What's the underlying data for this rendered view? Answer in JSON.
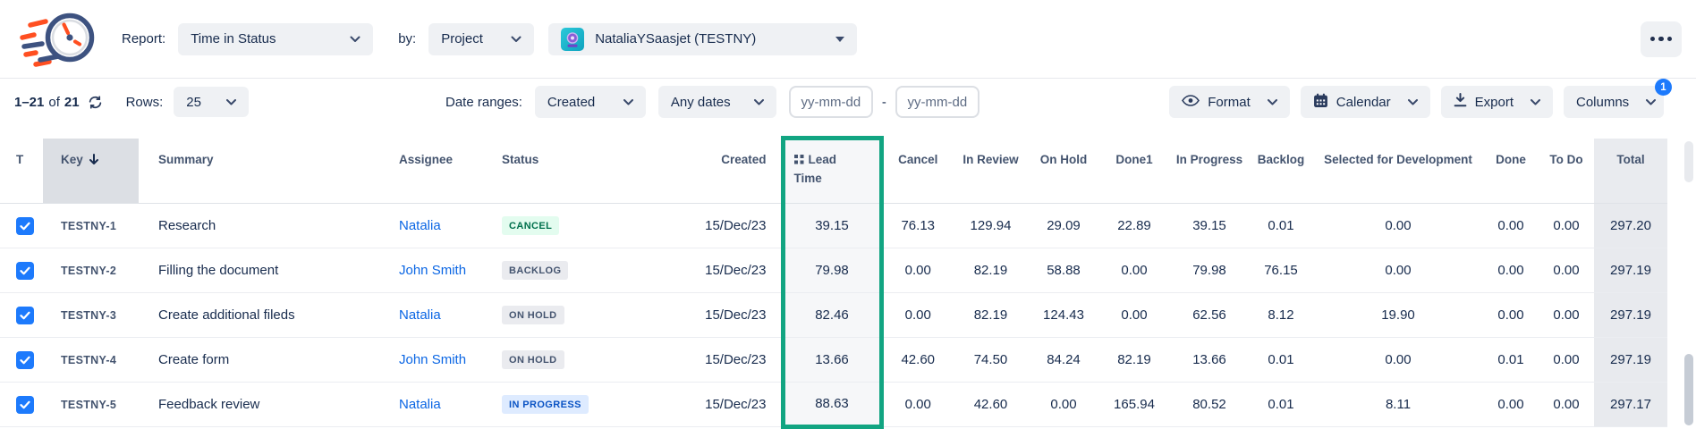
{
  "header": {
    "report_label": "Report:",
    "report_value": "Time in Status",
    "by_label": "by:",
    "group_by_value": "Project",
    "project_value": "NataliaYSaasjet (TESTNY)"
  },
  "toolbar": {
    "pagination_range": "1–21",
    "pagination_of": "of",
    "pagination_total": "21",
    "rows_label": "Rows:",
    "rows_value": "25",
    "date_ranges_label": "Date ranges:",
    "date_field_value": "Created",
    "date_preset_value": "Any dates",
    "date_from_placeholder": "yy-mm-dd",
    "date_separator": "-",
    "date_to_placeholder": "yy-mm-dd",
    "format_label": "Format",
    "calendar_label": "Calendar",
    "export_label": "Export",
    "columns_label": "Columns",
    "columns_badge": "1"
  },
  "table": {
    "sorted_column": "key",
    "highlighted_column": "lead_time",
    "columns": [
      {
        "id": "t",
        "label": "T"
      },
      {
        "id": "key",
        "label": "Key"
      },
      {
        "id": "summary",
        "label": "Summary"
      },
      {
        "id": "assignee",
        "label": "Assignee"
      },
      {
        "id": "status",
        "label": "Status"
      },
      {
        "id": "created",
        "label": "Created"
      },
      {
        "id": "lead_time",
        "label": "Lead Time"
      },
      {
        "id": "cancel",
        "label": "Cancel"
      },
      {
        "id": "in_review",
        "label": "In Review"
      },
      {
        "id": "on_hold",
        "label": "On Hold"
      },
      {
        "id": "done1",
        "label": "Done1"
      },
      {
        "id": "in_progress",
        "label": "In Progress"
      },
      {
        "id": "backlog",
        "label": "Backlog"
      },
      {
        "id": "selected_for_development",
        "label": "Selected for Development"
      },
      {
        "id": "done",
        "label": "Done"
      },
      {
        "id": "to_do",
        "label": "To Do"
      },
      {
        "id": "total",
        "label": "Total"
      }
    ],
    "rows": [
      {
        "checked": true,
        "key": "TESTNY-1",
        "summary": "Research",
        "assignee": "Natalia",
        "status": {
          "label": "CANCEL",
          "color": "green"
        },
        "created": "15/Dec/23",
        "lead_time": "39.15",
        "cancel": "76.13",
        "in_review": "129.94",
        "on_hold": "29.09",
        "done1": "22.89",
        "in_progress": "39.15",
        "backlog": "0.01",
        "selected_for_development": "0.00",
        "done": "0.00",
        "to_do": "0.00",
        "total": "297.20"
      },
      {
        "checked": true,
        "key": "TESTNY-2",
        "summary": "Filling the document",
        "assignee": "John Smith",
        "status": {
          "label": "BACKLOG",
          "color": "gray"
        },
        "created": "15/Dec/23",
        "lead_time": "79.98",
        "cancel": "0.00",
        "in_review": "82.19",
        "on_hold": "58.88",
        "done1": "0.00",
        "in_progress": "79.98",
        "backlog": "76.15",
        "selected_for_development": "0.00",
        "done": "0.00",
        "to_do": "0.00",
        "total": "297.19"
      },
      {
        "checked": true,
        "key": "TESTNY-3",
        "summary": "Create additional fileds",
        "assignee": "Natalia",
        "status": {
          "label": "ON HOLD",
          "color": "gray"
        },
        "created": "15/Dec/23",
        "lead_time": "82.46",
        "cancel": "0.00",
        "in_review": "82.19",
        "on_hold": "124.43",
        "done1": "0.00",
        "in_progress": "62.56",
        "backlog": "8.12",
        "selected_for_development": "19.90",
        "done": "0.00",
        "to_do": "0.00",
        "total": "297.19"
      },
      {
        "checked": true,
        "key": "TESTNY-4",
        "summary": "Create form",
        "assignee": "John Smith",
        "status": {
          "label": "ON HOLD",
          "color": "gray"
        },
        "created": "15/Dec/23",
        "lead_time": "13.66",
        "cancel": "42.60",
        "in_review": "74.50",
        "on_hold": "84.24",
        "done1": "82.19",
        "in_progress": "13.66",
        "backlog": "0.01",
        "selected_for_development": "0.00",
        "done": "0.01",
        "to_do": "0.00",
        "total": "297.19"
      },
      {
        "checked": true,
        "key": "TESTNY-5",
        "summary": "Feedback review",
        "assignee": "Natalia",
        "status": {
          "label": "IN PROGRESS",
          "color": "blue"
        },
        "created": "15/Dec/23",
        "lead_time": "88.63",
        "cancel": "0.00",
        "in_review": "42.60",
        "on_hold": "0.00",
        "done1": "165.94",
        "in_progress": "80.52",
        "backlog": "0.01",
        "selected_for_development": "8.11",
        "done": "0.00",
        "to_do": "0.00",
        "total": "297.17"
      }
    ]
  },
  "colors": {
    "highlight_green": "#12A582",
    "link_blue": "#0B66E4",
    "checkbox_blue": "#1D7AFC",
    "badge_green_bg": "#E3FCEF",
    "badge_green_text": "#00704C",
    "badge_gray_bg": "#EAEBEF",
    "badge_gray_text": "#44546F",
    "badge_blue_bg": "#DEEBFF",
    "badge_blue_text": "#0A53C4"
  }
}
